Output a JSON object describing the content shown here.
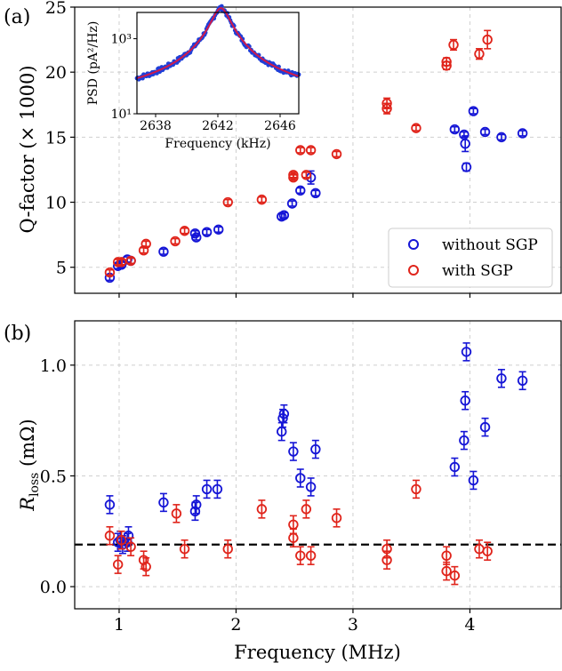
{
  "colors": {
    "without": "#1515d6",
    "with": "#e0241b",
    "fit": "#d01a4a",
    "inset_data": "#1f3fd8"
  },
  "panel_labels": {
    "a": "(a)",
    "b": "(b)"
  },
  "legend": {
    "without": "without SGP",
    "with": "with SGP",
    "position": "lower-right"
  },
  "chart_data": [
    {
      "id": "a",
      "type": "scatter",
      "xlabel": "Frequency (MHz)",
      "ylabel": "Q-factor (× 1000)",
      "xlim": [
        0.62,
        4.78
      ],
      "ylim": [
        3.0,
        25.0
      ],
      "xticks": [
        1,
        2,
        3,
        4
      ],
      "xtick_labels": [
        "",
        "",
        "",
        ""
      ],
      "yticks": [
        5,
        10,
        15,
        20,
        25
      ],
      "ytick_labels": [
        "5",
        "10",
        "15",
        "20",
        "25"
      ],
      "grid": true,
      "series": [
        {
          "name": "without SGP",
          "x": [
            0.92,
            0.99,
            1.02,
            1.07,
            1.1,
            1.38,
            1.65,
            1.66,
            1.75,
            1.85,
            2.39,
            2.41,
            2.48,
            2.55,
            2.64,
            2.68,
            3.87,
            3.95,
            3.96,
            3.97,
            4.03,
            4.13,
            4.27,
            4.45
          ],
          "y": [
            4.2,
            5.1,
            5.2,
            5.6,
            5.5,
            6.2,
            7.6,
            7.3,
            7.7,
            7.9,
            8.9,
            9.0,
            9.9,
            10.9,
            11.9,
            10.7,
            15.6,
            15.2,
            14.5,
            12.7,
            17.0,
            15.4,
            15.0,
            15.3
          ],
          "yerr": [
            0.2,
            0.2,
            0.2,
            0.2,
            0.2,
            0.2,
            0.2,
            0.2,
            0.2,
            0.2,
            0.2,
            0.2,
            0.2,
            0.2,
            0.5,
            0.2,
            0.2,
            0.2,
            0.6,
            0.3,
            0.2,
            0.2,
            0.2,
            0.2
          ]
        },
        {
          "name": "with SGP",
          "x": [
            0.92,
            0.99,
            1.02,
            1.1,
            1.21,
            1.23,
            1.48,
            1.56,
            1.93,
            2.22,
            2.49,
            2.49,
            2.55,
            2.6,
            2.64,
            2.86,
            3.29,
            3.29,
            3.54,
            3.8,
            3.8,
            3.86,
            4.08,
            4.15
          ],
          "y": [
            4.6,
            5.4,
            5.4,
            5.5,
            6.3,
            6.8,
            7.0,
            7.8,
            10.0,
            10.2,
            11.9,
            12.1,
            14.0,
            12.1,
            14.0,
            13.7,
            17.2,
            17.6,
            15.7,
            20.5,
            20.8,
            22.1,
            21.4,
            22.5
          ],
          "yerr": [
            0.2,
            0.2,
            0.2,
            0.2,
            0.2,
            0.2,
            0.2,
            0.2,
            0.2,
            0.2,
            0.2,
            0.2,
            0.2,
            0.2,
            0.2,
            0.2,
            0.4,
            0.4,
            0.2,
            0.3,
            0.3,
            0.4,
            0.4,
            0.7
          ]
        }
      ],
      "inset": {
        "type": "line",
        "xlabel": "Frequency (kHz)",
        "ylabel": "PSD (pA²/Hz)",
        "xlim": [
          2636.8,
          2647.2
        ],
        "ylim_log10": [
          1,
          3.7
        ],
        "yscale": "log",
        "xticks": [
          2638,
          2642,
          2646
        ],
        "xtick_labels": [
          "2638",
          "2642",
          "2646"
        ],
        "yticks_log10": [
          1,
          3
        ],
        "ytick_labels": [
          "10¹",
          "10³"
        ],
        "peak": {
          "x0": 2642.2,
          "baseline": 22,
          "amplitude": 6500,
          "gamma": 0.55
        }
      }
    },
    {
      "id": "b",
      "type": "scatter",
      "xlabel": "Frequency (MHz)",
      "ylabel": "R_loss (mΩ)",
      "xlim": [
        0.62,
        4.78
      ],
      "ylim": [
        -0.1,
        1.2
      ],
      "xticks": [
        1,
        2,
        3,
        4
      ],
      "xtick_labels": [
        "1",
        "2",
        "3",
        "4"
      ],
      "yticks": [
        0.0,
        0.5,
        1.0
      ],
      "ytick_labels": [
        "0.0",
        "0.5",
        "1.0"
      ],
      "grid": true,
      "hline": 0.19,
      "series": [
        {
          "name": "without SGP",
          "x": [
            0.92,
            0.99,
            1.01,
            1.03,
            1.07,
            1.08,
            1.38,
            1.65,
            1.66,
            1.75,
            1.84,
            2.39,
            2.41,
            2.4,
            2.49,
            2.55,
            2.64,
            2.68,
            3.87,
            3.95,
            3.96,
            3.97,
            4.03,
            4.13,
            4.27,
            4.45
          ],
          "y": [
            0.37,
            0.2,
            0.21,
            0.19,
            0.2,
            0.23,
            0.38,
            0.34,
            0.37,
            0.44,
            0.44,
            0.7,
            0.78,
            0.76,
            0.61,
            0.49,
            0.45,
            0.62,
            0.54,
            0.66,
            0.84,
            1.06,
            0.48,
            0.72,
            0.94,
            0.93
          ],
          "yerr": [
            0.04,
            0.04,
            0.04,
            0.04,
            0.04,
            0.04,
            0.04,
            0.04,
            0.04,
            0.04,
            0.04,
            0.04,
            0.04,
            0.04,
            0.04,
            0.04,
            0.04,
            0.04,
            0.04,
            0.04,
            0.04,
            0.04,
            0.04,
            0.04,
            0.04,
            0.04
          ]
        },
        {
          "name": "with SGP",
          "x": [
            0.92,
            0.99,
            1.02,
            1.1,
            1.21,
            1.23,
            1.49,
            1.56,
            1.93,
            2.22,
            2.49,
            2.49,
            2.55,
            2.6,
            2.64,
            2.86,
            3.29,
            3.29,
            3.54,
            3.8,
            3.8,
            3.87,
            4.08,
            4.15
          ],
          "y": [
            0.23,
            0.1,
            0.21,
            0.18,
            0.12,
            0.09,
            0.33,
            0.17,
            0.17,
            0.35,
            0.22,
            0.28,
            0.14,
            0.35,
            0.14,
            0.31,
            0.12,
            0.17,
            0.44,
            0.07,
            0.14,
            0.05,
            0.17,
            0.16
          ],
          "yerr": [
            0.04,
            0.04,
            0.04,
            0.04,
            0.04,
            0.04,
            0.04,
            0.04,
            0.04,
            0.04,
            0.04,
            0.04,
            0.04,
            0.04,
            0.04,
            0.04,
            0.04,
            0.04,
            0.04,
            0.04,
            0.04,
            0.04,
            0.04,
            0.04
          ]
        }
      ]
    }
  ]
}
